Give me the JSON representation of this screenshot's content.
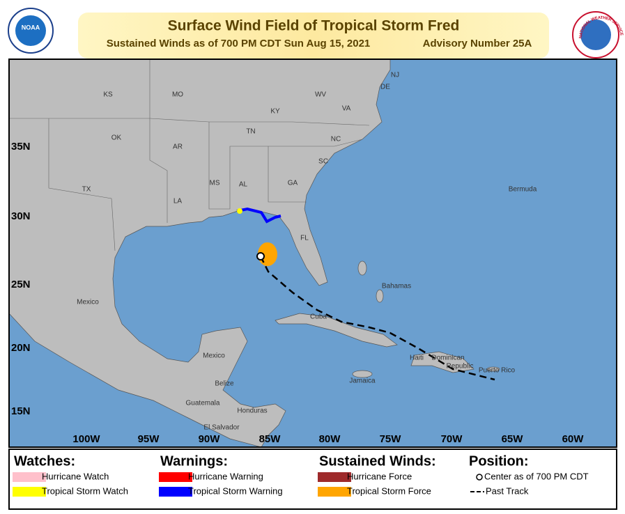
{
  "header": {
    "noaa_logo": "NOAA",
    "nws_logo": "NATIONAL WEATHER SERVICE",
    "title": "Surface Wind Field of Tropical Storm Fred",
    "subtitle": "Sustained Winds as of 700 PM CDT Sun Aug 15, 2021",
    "advisory": "Advisory Number 25A"
  },
  "map": {
    "lon_labels": [
      "100W",
      "95W",
      "90W",
      "85W",
      "80W",
      "75W",
      "70W",
      "65W",
      "60W"
    ],
    "lat_labels": [
      "35N",
      "30N",
      "25N",
      "20N",
      "15N"
    ],
    "place_labels": [
      "KS",
      "MO",
      "WV",
      "VA",
      "KY",
      "OK",
      "AR",
      "TN",
      "NC",
      "SC",
      "MS",
      "AL",
      "GA",
      "LA",
      "TX",
      "FL",
      "Bermuda",
      "Bahamas",
      "Mexico",
      "Cuba",
      "Mexico",
      "Haiti",
      "Dominican",
      "Republic",
      "Jamaica",
      "Puerto Rico",
      "Belize",
      "Guatemala",
      "Honduras",
      "El Salvador",
      "NJ",
      "DE"
    ]
  },
  "legend": {
    "watches": {
      "title": "Watches:",
      "items": [
        "Hurricane Watch",
        "Tropical Storm Watch"
      ]
    },
    "warnings": {
      "title": "Warnings:",
      "items": [
        "Hurricane Warning",
        "Tropical Storm Warning"
      ]
    },
    "winds": {
      "title": "Sustained Winds:",
      "items": [
        "Hurricane Force",
        "Tropical Storm Force"
      ]
    },
    "position": {
      "title": "Position:",
      "items": [
        "Center as of 700 PM CDT",
        "Past Track"
      ]
    }
  }
}
